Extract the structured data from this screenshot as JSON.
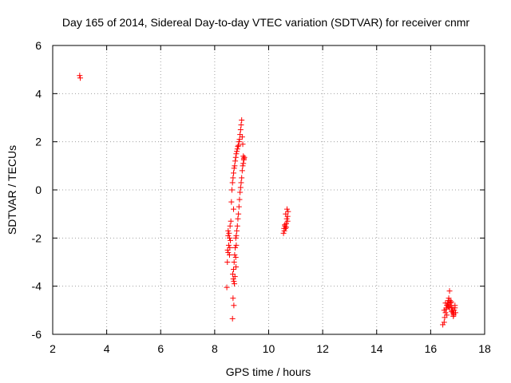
{
  "chart_data": {
    "type": "scatter",
    "title": "Day 165 of 2014, Sidereal Day-to-day VTEC variation (SDTVAR) for receiver cnmr",
    "xlabel": "GPS time / hours",
    "ylabel": "SDTVAR / TECUs",
    "xlim": [
      2,
      18
    ],
    "ylim": [
      -6,
      6
    ],
    "xticks": [
      2,
      4,
      6,
      8,
      10,
      12,
      14,
      16,
      18
    ],
    "yticks": [
      -6,
      -4,
      -2,
      0,
      2,
      4,
      6
    ],
    "grid": true,
    "marker": "+",
    "marker_color": "#ff0000",
    "series": [
      {
        "name": "SDTVAR",
        "x": [
          3.0,
          3.02,
          8.45,
          8.47,
          8.5,
          8.52,
          8.55,
          8.48,
          8.53,
          8.57,
          8.6,
          8.5,
          8.55,
          8.58,
          8.5,
          8.56,
          8.62,
          8.64,
          8.66,
          8.68,
          8.7,
          8.72,
          8.74,
          8.76,
          8.78,
          8.8,
          8.82,
          8.84,
          8.86,
          8.88,
          8.9,
          8.92,
          8.94,
          8.96,
          8.98,
          9.0,
          9.02,
          9.04,
          9.06,
          9.08,
          8.67,
          8.69,
          8.71,
          8.73,
          8.75,
          8.7,
          8.72,
          8.74,
          8.76,
          8.78,
          8.68,
          8.71,
          8.66,
          8.7,
          8.8,
          8.82,
          8.84,
          8.86,
          8.88,
          8.9,
          8.92,
          8.94,
          8.96,
          8.98,
          9.0,
          9.02,
          9.04,
          9.06,
          9.08,
          9.1,
          8.78,
          8.8,
          8.79,
          10.55,
          10.57,
          10.6,
          10.62,
          10.65,
          10.67,
          10.7,
          10.72,
          10.58,
          10.63,
          10.68,
          10.6,
          10.65,
          10.7,
          16.45,
          16.5,
          16.52,
          16.55,
          16.58,
          16.6,
          16.62,
          16.65,
          16.67,
          16.7,
          16.72,
          16.75,
          16.77,
          16.8,
          16.82,
          16.85,
          16.87,
          16.9,
          16.92,
          16.55,
          16.62,
          16.7,
          16.78,
          16.85,
          16.6,
          16.68,
          16.76,
          16.84,
          16.5,
          16.58,
          16.66,
          16.74,
          16.82,
          16.9
        ],
        "y": [
          4.75,
          4.65,
          -4.05,
          -3.0,
          -2.6,
          -2.3,
          -2.0,
          -2.5,
          -1.8,
          -1.5,
          -1.3,
          -1.9,
          -2.7,
          -2.1,
          -1.7,
          -2.4,
          -0.5,
          0.0,
          0.3,
          0.5,
          0.7,
          0.9,
          1.0,
          1.2,
          1.35,
          1.5,
          1.6,
          1.7,
          1.8,
          1.85,
          2.0,
          2.1,
          2.3,
          2.5,
          2.7,
          2.9,
          2.2,
          1.9,
          1.4,
          1.3,
          -3.5,
          -3.7,
          -3.8,
          -3.9,
          -3.6,
          -3.3,
          -3.0,
          -2.7,
          -2.4,
          -2.0,
          -4.5,
          -4.8,
          -5.35,
          -0.8,
          -1.9,
          -1.7,
          -1.5,
          -1.2,
          -1.0,
          -0.7,
          -0.4,
          -0.1,
          0.1,
          0.3,
          0.5,
          0.8,
          1.0,
          1.1,
          1.25,
          1.35,
          -2.8,
          -2.3,
          -3.2,
          -1.8,
          -1.6,
          -1.5,
          -1.6,
          -1.4,
          -1.2,
          -1.3,
          -0.9,
          -1.7,
          -1.0,
          -0.8,
          -1.45,
          -1.55,
          -1.1,
          -5.6,
          -5.5,
          -5.3,
          -5.1,
          -4.9,
          -4.8,
          -4.7,
          -4.6,
          -4.5,
          -4.2,
          -4.6,
          -4.8,
          -4.9,
          -5.0,
          -5.1,
          -5.2,
          -5.0,
          -4.9,
          -5.1,
          -4.7,
          -4.8,
          -4.9,
          -5.05,
          -5.15,
          -5.2,
          -4.75,
          -4.65,
          -5.25,
          -5.0,
          -4.95,
          -4.85,
          -4.7,
          -4.9,
          -4.8
        ]
      }
    ]
  }
}
